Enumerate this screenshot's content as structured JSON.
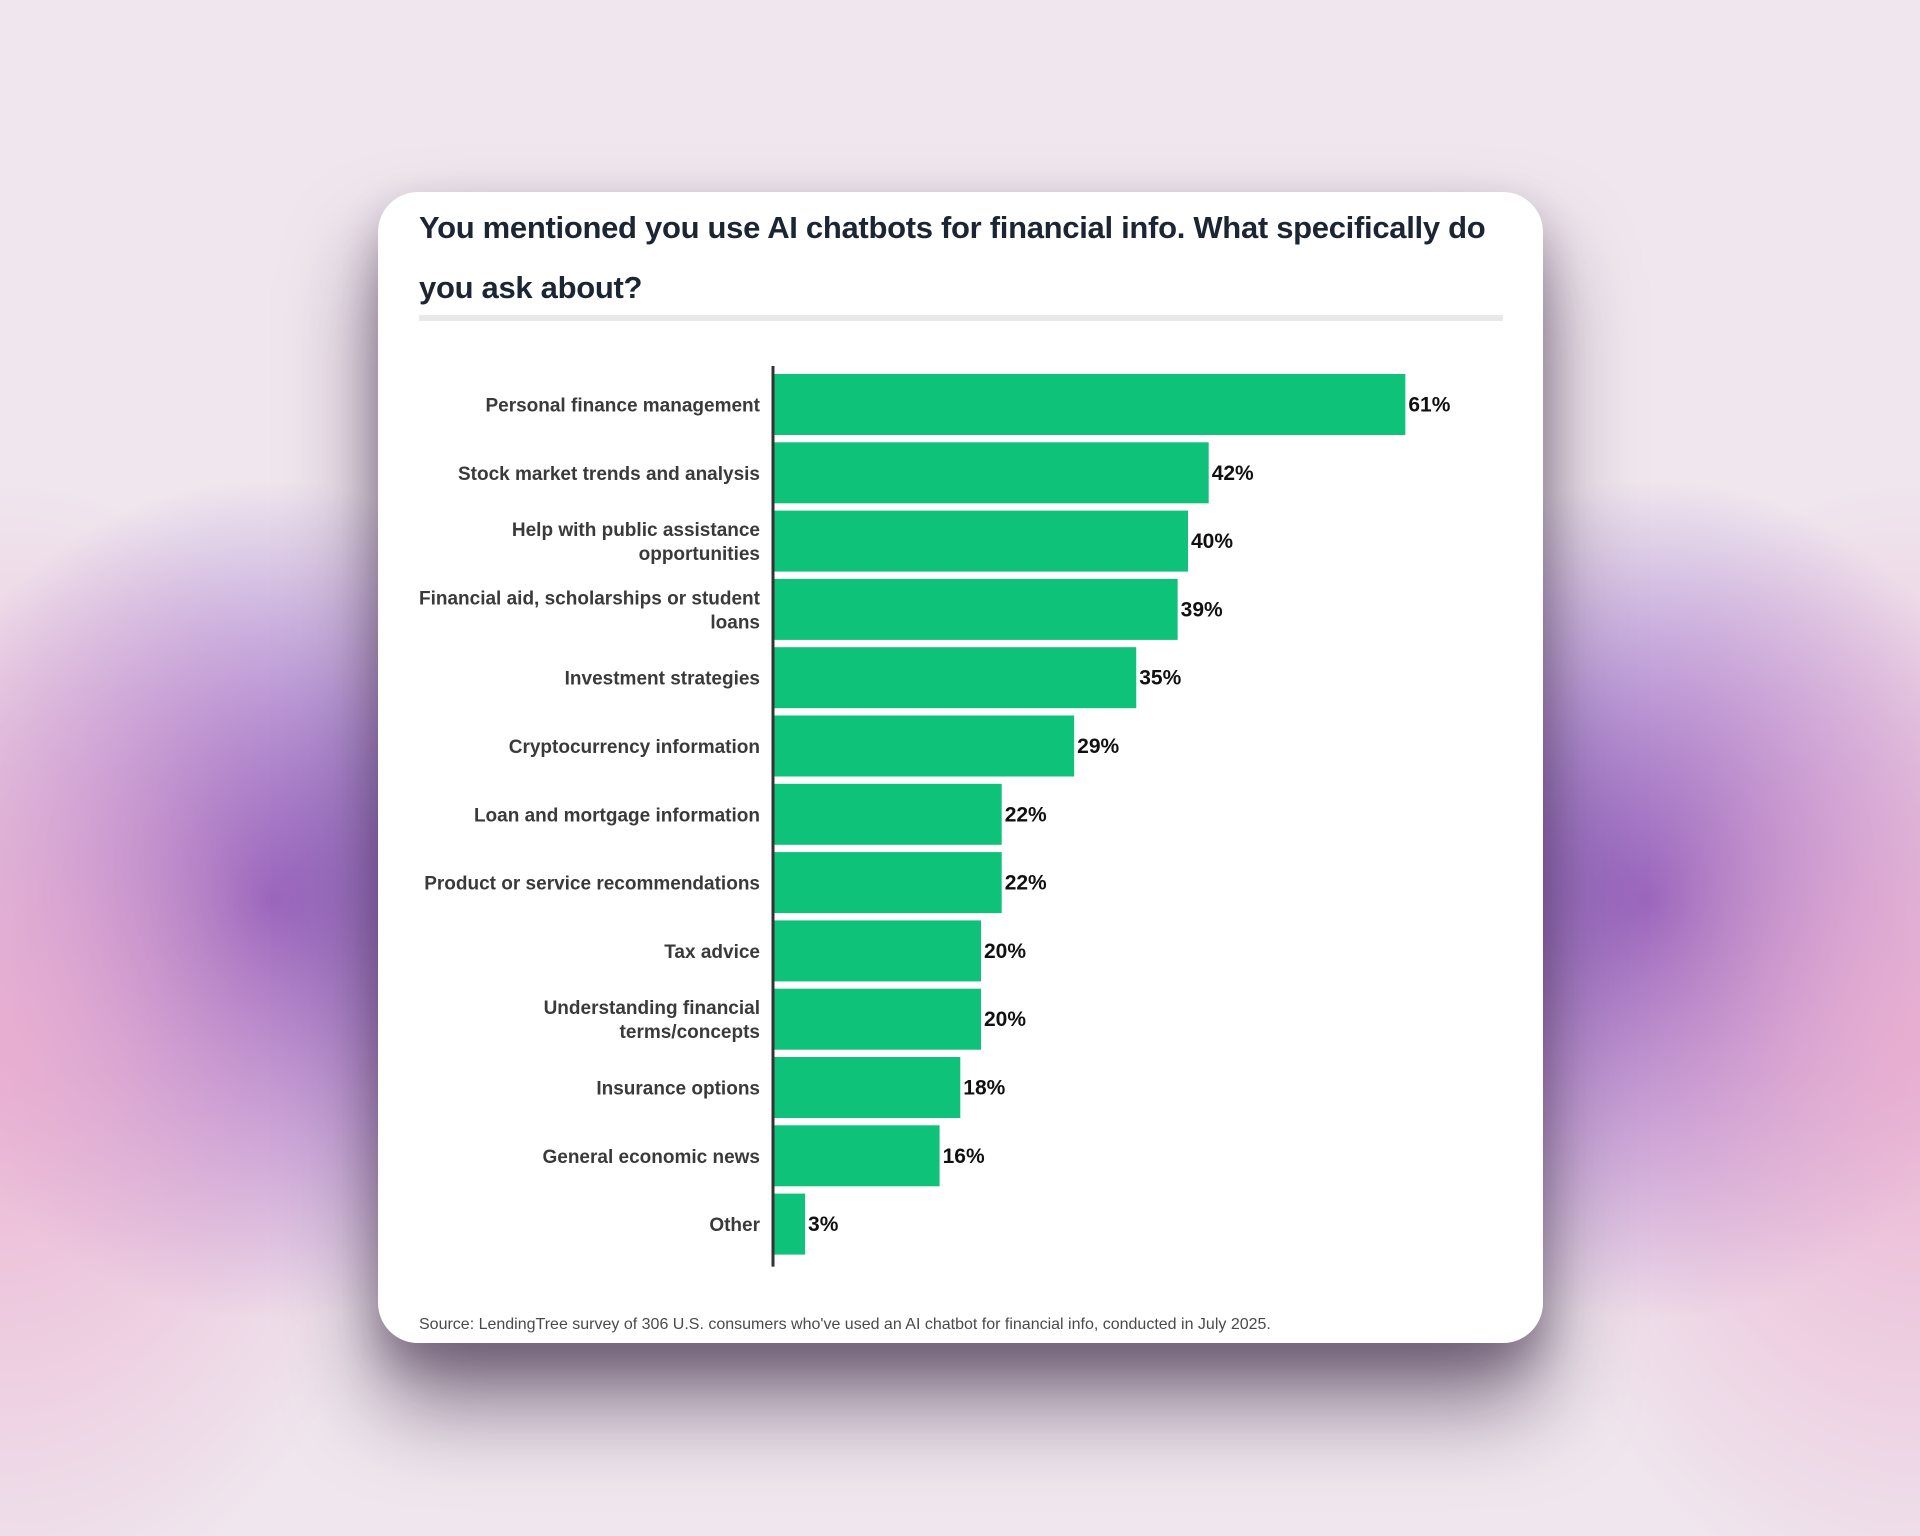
{
  "title": "You mentioned you use AI chatbots for financial info. What specifically do you ask about?",
  "source": "Source: LendingTree survey of 306 U.S. consumers who've used an AI chatbot for financial info, conducted in July 2025.",
  "colors": {
    "bar": "#0fc27a",
    "axis": "#333333",
    "label": "#3a3a3a",
    "value": "#111111"
  },
  "chart_data": {
    "type": "bar",
    "orientation": "horizontal",
    "title": "You mentioned you use AI chatbots for financial info. What specifically do you ask about?",
    "categories": [
      [
        "Personal finance management"
      ],
      [
        "Stock market trends and analysis"
      ],
      [
        "Help with public assistance",
        "opportunities"
      ],
      [
        "Financial aid, scholarships or student",
        "loans"
      ],
      [
        "Investment strategies"
      ],
      [
        "Cryptocurrency information"
      ],
      [
        "Loan and mortgage information"
      ],
      [
        "Product or service recommendations"
      ],
      [
        "Tax advice"
      ],
      [
        "Understanding financial",
        "terms/concepts"
      ],
      [
        "Insurance options"
      ],
      [
        "General economic news"
      ],
      [
        "Other"
      ]
    ],
    "values": [
      61,
      42,
      40,
      39,
      35,
      29,
      22,
      22,
      20,
      20,
      18,
      16,
      3
    ],
    "value_labels": [
      "61%",
      "42%",
      "40%",
      "39%",
      "35%",
      "29%",
      "22%",
      "22%",
      "20%",
      "20%",
      "18%",
      "16%",
      "3%"
    ],
    "unit": "%",
    "grid": false,
    "legend": "none"
  }
}
